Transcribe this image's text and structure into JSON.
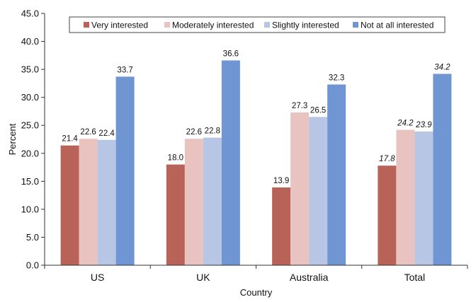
{
  "chart_data": {
    "type": "bar",
    "categories": [
      "US",
      "UK",
      "Australia",
      "Total"
    ],
    "series": [
      {
        "name": "Very interested",
        "values": [
          21.4,
          18.0,
          13.9,
          17.8
        ],
        "color": "#b96257"
      },
      {
        "name": "Moderately interested",
        "values": [
          22.6,
          22.6,
          27.3,
          24.2
        ],
        "color": "#e8c3c0"
      },
      {
        "name": "Slightly interested",
        "values": [
          22.4,
          22.8,
          26.5,
          23.9
        ],
        "color": "#b7c6e4"
      },
      {
        "name": "Not at all interested",
        "values": [
          33.7,
          36.6,
          32.3,
          34.2
        ],
        "color": "#6f95d2"
      }
    ],
    "data_labels": [
      [
        "21.4",
        "22.6",
        "22.4",
        "33.7"
      ],
      [
        "18.0",
        "22.6",
        "22.8",
        "36.6"
      ],
      [
        "13.9",
        "27.3",
        "26.5",
        "32.3"
      ],
      [
        "17.8",
        "24.2",
        "23.9",
        "34.2"
      ]
    ],
    "italic_labels_category": "Total",
    "xlabel": "Country",
    "ylabel": "Percent",
    "ylim": [
      0,
      45
    ],
    "yticks": [
      "0.0",
      "5.0",
      "10.0",
      "15.0",
      "20.0",
      "25.0",
      "30.0",
      "35.0",
      "40.0",
      "45.0"
    ],
    "legend_position": "top",
    "grid": false
  }
}
